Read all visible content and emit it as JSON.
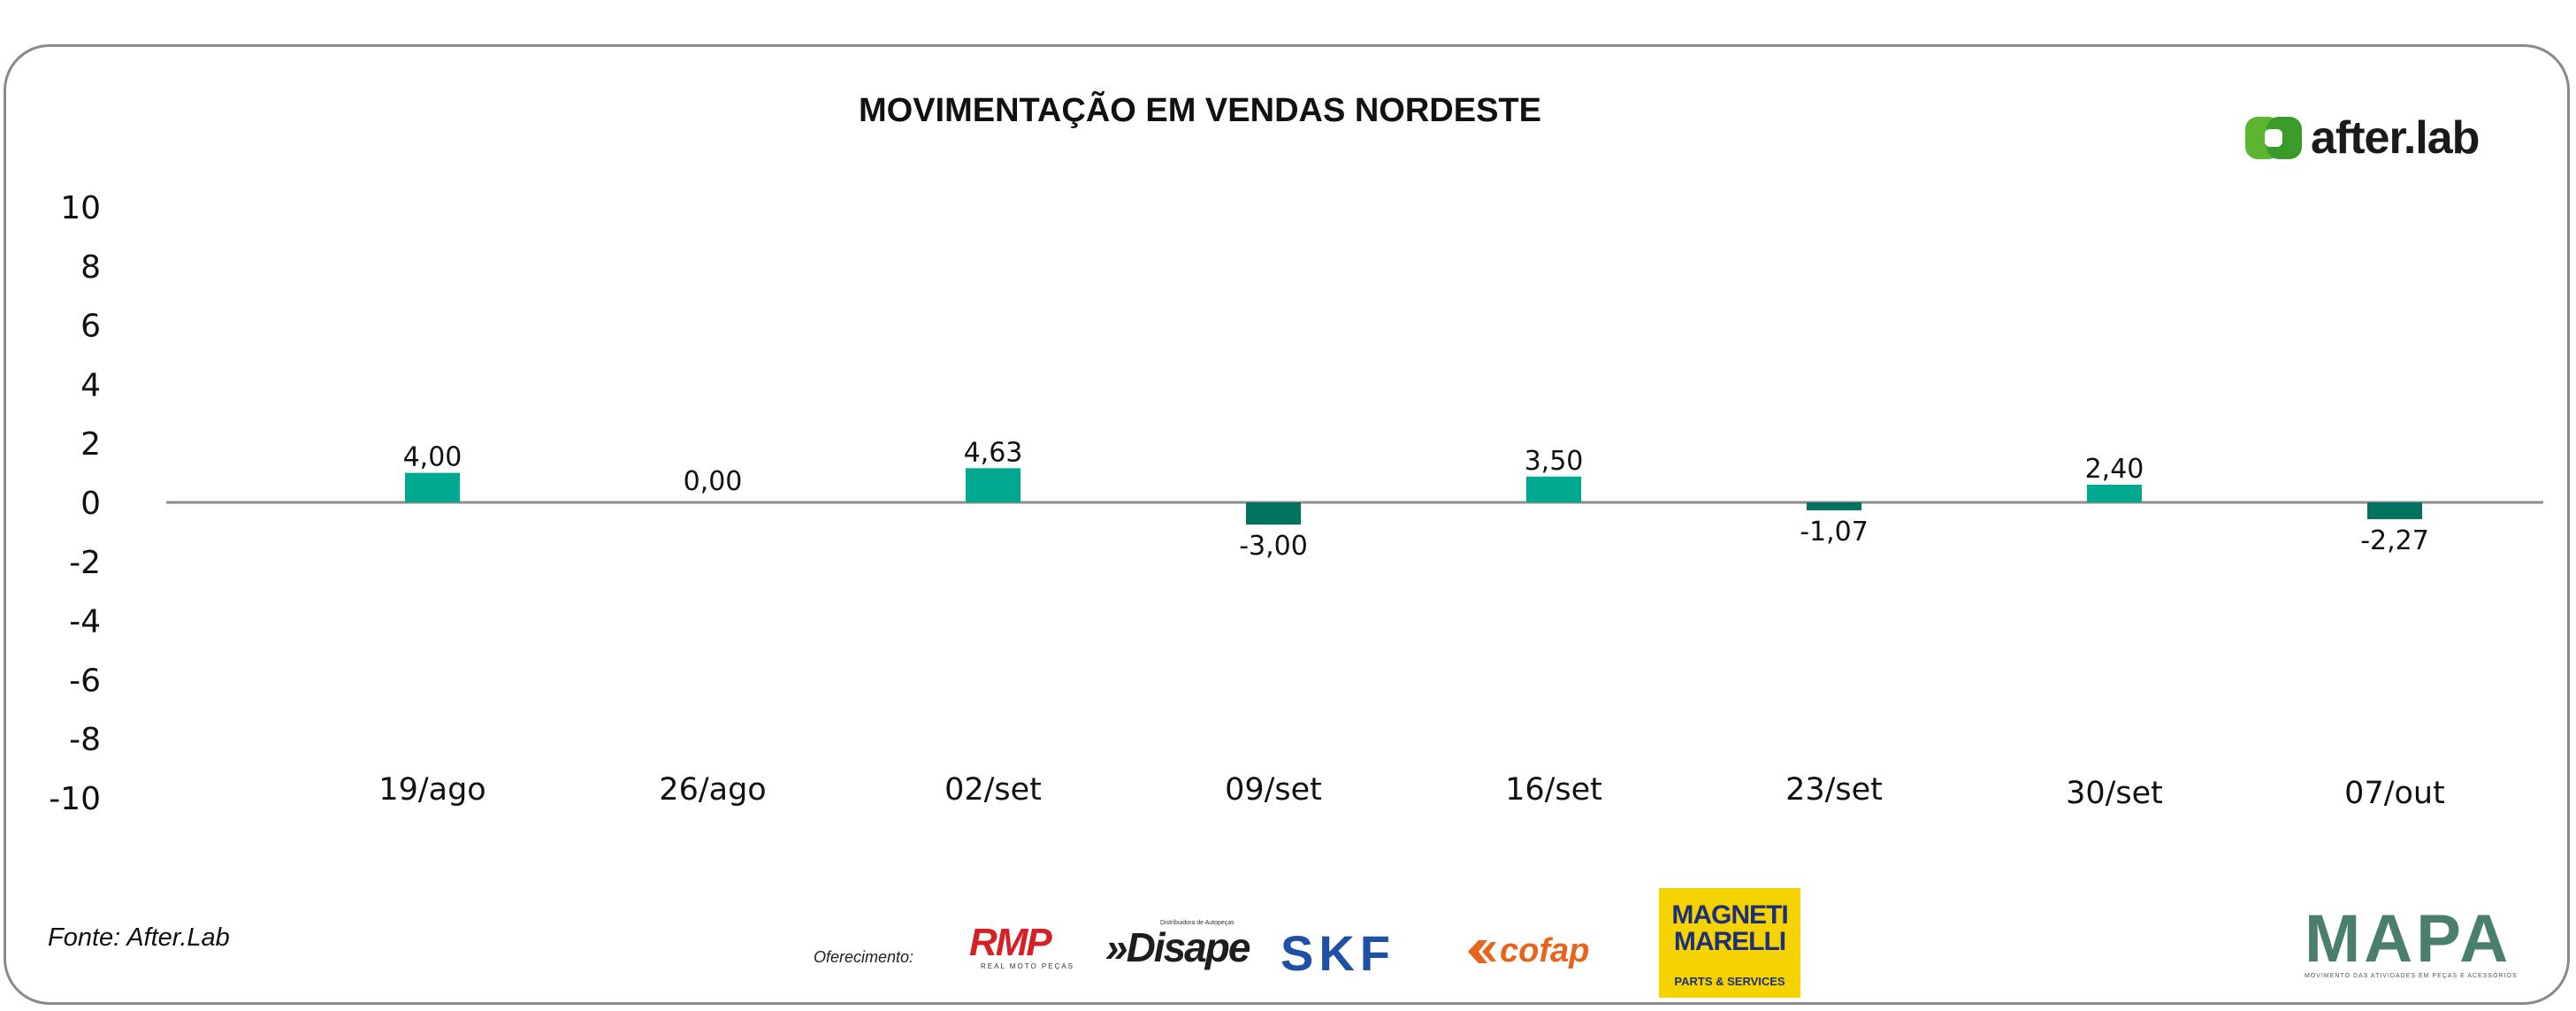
{
  "chart_data": {
    "type": "bar",
    "title": "MOVIMENTAÇÃO EM VENDAS NORDESTE",
    "categories": [
      "19/ago",
      "26/ago",
      "02/set",
      "09/set",
      "16/set",
      "23/set",
      "30/set",
      "07/out"
    ],
    "values": [
      4.0,
      0.0,
      4.63,
      -3.0,
      3.5,
      -1.07,
      2.4,
      -2.27
    ],
    "data_labels": [
      "4,00",
      "0,00",
      "4,63",
      "-3,00",
      "3,50",
      "-1,07",
      "2,40",
      "-2,27"
    ],
    "y_ticks": [
      "10",
      "8",
      "6",
      "4",
      "2",
      "0",
      "-2",
      "-4",
      "-6",
      "-8",
      "-10"
    ],
    "ylim": [
      -10,
      10
    ],
    "xlabel": "",
    "ylabel": "",
    "grid": false,
    "legend": "none",
    "colors": {
      "positive": "#00a88f",
      "negative": "#00735f",
      "axis": "#8c8c8c"
    }
  },
  "footer": {
    "source": "Fonte: After.Lab",
    "offered_label": "Oferecimento:"
  },
  "logos": {
    "afterlab": "after.lab",
    "rmp": "RMP",
    "rmp_sub": "REAL MOTO PEÇAS",
    "disape": "»Disape",
    "disape_sub": "Distribuidora de Autopeças",
    "skf": "SKF",
    "cofap": "cofap",
    "magneti_line1": "MAGNETI",
    "magneti_line2": "MARELLI",
    "magneti_sub": "PARTS & SERVICES",
    "mapa": "MAPA",
    "mapa_sub": "MOVIMENTO DAS ATIVIDADES EM PEÇAS E ACESSÓRIOS",
    "colors": {
      "afterlab_green": "#5bb531",
      "rmp_red": "#d71f26",
      "skf_blue": "#1f4fa6",
      "cofap_orange": "#e8641b",
      "magneti_yellow": "#f5d300",
      "magneti_blue": "#1b2f7a"
    }
  }
}
